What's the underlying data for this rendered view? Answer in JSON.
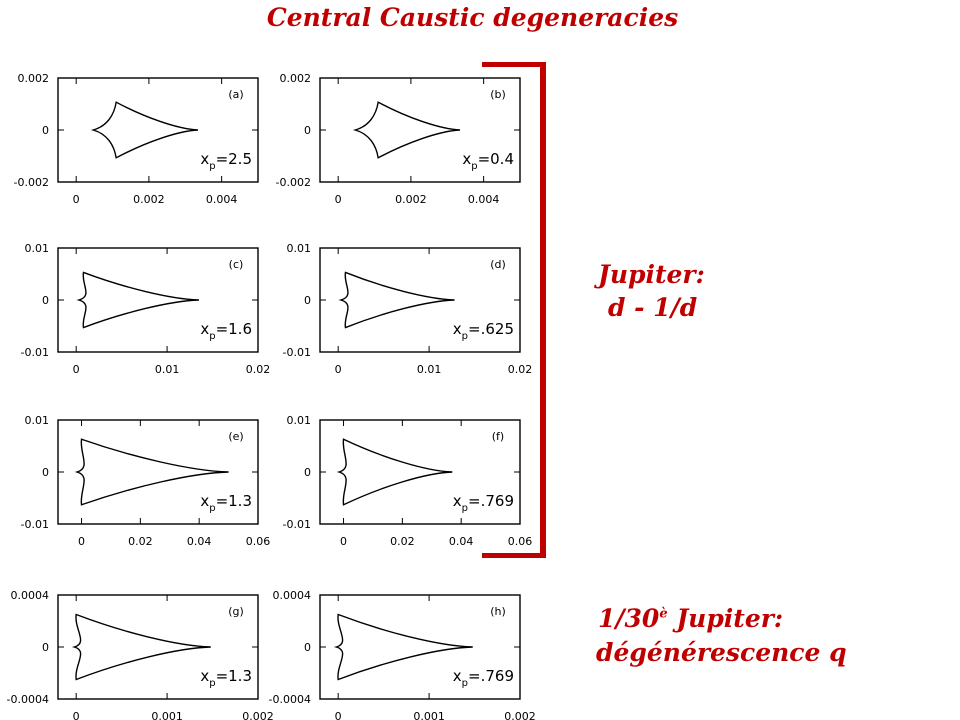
{
  "title": "Central Caustic degeneracies",
  "annotations": {
    "jupiter_label": "Jupiter:",
    "jupiter_relation": "d - 1/d",
    "small_ratio": "1/30",
    "small_sup": "è",
    "small_jupiter": " Jupiter:",
    "small_degeneracy": "dégénérescence q"
  },
  "colors": {
    "accent": "#c00000",
    "caustic_line": "#000000"
  },
  "chart_data": [
    {
      "type": "line",
      "panel": "(a)",
      "param_label": "x",
      "param_sub": "p",
      "param_value": "=2.5",
      "xlim": [
        -0.0005,
        0.005
      ],
      "ylim": [
        -0.002,
        0.002
      ],
      "xticks": [
        "0",
        "0.002",
        "0.004"
      ],
      "yticks": [
        "0.002",
        "0",
        "-0.002"
      ],
      "cusp_left": 0.00047,
      "cusp_right": 0.00335,
      "cusp_upper": [
        0.0011,
        0.00107
      ]
    },
    {
      "type": "line",
      "panel": "(b)",
      "param_label": "x",
      "param_sub": "p",
      "param_value": "=0.4",
      "xlim": [
        -0.0005,
        0.005
      ],
      "ylim": [
        -0.002,
        0.002
      ],
      "xticks": [
        "0",
        "0.002",
        "0.004"
      ],
      "yticks": [
        "0.002",
        "0",
        "-0.002"
      ],
      "cusp_left": 0.00047,
      "cusp_right": 0.00335,
      "cusp_upper": [
        0.0011,
        0.00107
      ]
    },
    {
      "type": "line",
      "panel": "(c)",
      "param_label": "x",
      "param_sub": "p",
      "param_value": "=1.6",
      "xlim": [
        -0.002,
        0.02
      ],
      "ylim": [
        -0.01,
        0.01
      ],
      "xticks": [
        "0",
        "0.01",
        "0.02"
      ],
      "yticks": [
        "0.01",
        "0",
        "-0.01"
      ],
      "cusp_left": 0.0003,
      "cusp_right": 0.0135,
      "cusp_upper": [
        0.0008,
        0.0053
      ]
    },
    {
      "type": "line",
      "panel": "(d)",
      "param_label": "x",
      "param_sub": "p",
      "param_value": "=.625",
      "xlim": [
        -0.002,
        0.02
      ],
      "ylim": [
        -0.01,
        0.01
      ],
      "xticks": [
        "0",
        "0.01",
        "0.02"
      ],
      "yticks": [
        "0.01",
        "0",
        "-0.01"
      ],
      "cusp_left": 0.0003,
      "cusp_right": 0.0128,
      "cusp_upper": [
        0.0008,
        0.0053
      ]
    },
    {
      "type": "line",
      "panel": "(e)",
      "param_label": "x",
      "param_sub": "p",
      "param_value": "=1.3",
      "xlim": [
        -0.008,
        0.06
      ],
      "ylim": [
        -0.01,
        0.01
      ],
      "xticks": [
        "0",
        "0.02",
        "0.04",
        "0.06"
      ],
      "yticks": [
        "0.01",
        "0",
        "-0.01"
      ],
      "cusp_left": -0.0015,
      "cusp_right": 0.05,
      "cusp_upper": [
        0.0,
        0.0063
      ]
    },
    {
      "type": "line",
      "panel": "(f)",
      "param_label": "x",
      "param_sub": "p",
      "param_value": "=.769",
      "xlim": [
        -0.008,
        0.06
      ],
      "ylim": [
        -0.01,
        0.01
      ],
      "xticks": [
        "0",
        "0.02",
        "0.04",
        "0.06"
      ],
      "yticks": [
        "0.01",
        "0",
        "-0.01"
      ],
      "cusp_left": -0.0015,
      "cusp_right": 0.037,
      "cusp_upper": [
        0.0,
        0.0063
      ]
    },
    {
      "type": "line",
      "panel": "(g)",
      "param_label": "x",
      "param_sub": "p",
      "param_value": "=1.3",
      "xlim": [
        -0.0002,
        0.002
      ],
      "ylim": [
        -0.0004,
        0.0004
      ],
      "xticks": [
        "0",
        "0.001",
        "0.002"
      ],
      "yticks": [
        "0.0004",
        "0",
        "-0.0004"
      ],
      "cusp_left": -2e-05,
      "cusp_right": 0.00148,
      "cusp_upper": [
        0.0,
        0.00025
      ]
    },
    {
      "type": "line",
      "panel": "(h)",
      "param_label": "x",
      "param_sub": "p",
      "param_value": "=.769",
      "xlim": [
        -0.0002,
        0.002
      ],
      "ylim": [
        -0.0004,
        0.0004
      ],
      "xticks": [
        "0",
        "0.001",
        "0.002"
      ],
      "yticks": [
        "0.0004",
        "0",
        "-0.0004"
      ],
      "cusp_left": -2e-05,
      "cusp_right": 0.00148,
      "cusp_upper": [
        0.0,
        0.00025
      ]
    }
  ]
}
